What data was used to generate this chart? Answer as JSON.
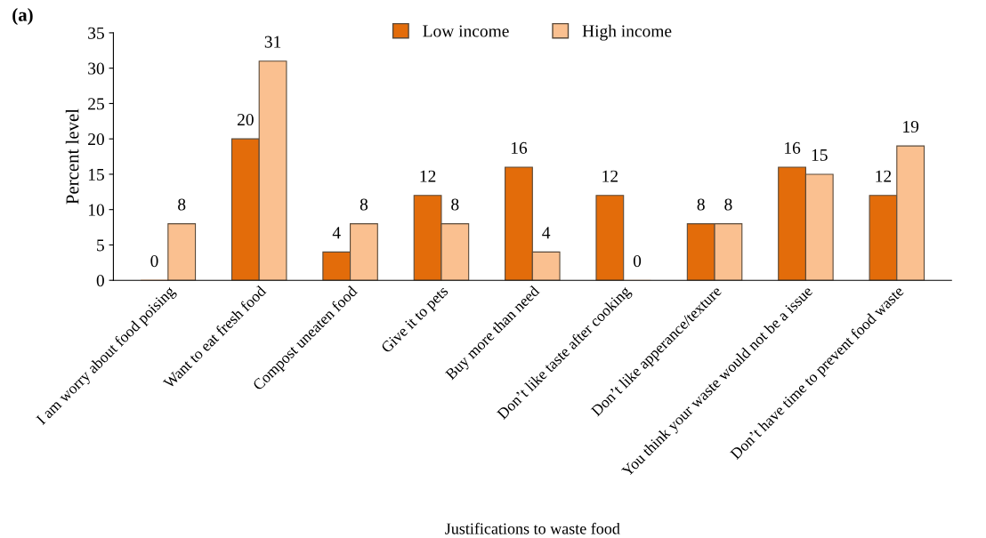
{
  "chart_data": {
    "type": "bar",
    "xlabel": "Justifications to waste food",
    "ylabel": "Percent level",
    "annotations": [
      "(a)"
    ],
    "categories": [
      "I am worry about food poising",
      "Want to eat fresh food",
      "Compost uneaten food",
      "Give it to pets",
      "Buy more than need",
      "Don’t like taste after cooking",
      "Don’t like apperance/texture",
      "You think your waste would not be a issue",
      "Don’t have time to prevent food waste"
    ],
    "series": [
      {
        "name": "Low income",
        "color": "#e36c0a",
        "values": [
          0,
          20,
          4,
          12,
          16,
          12,
          8,
          16,
          12
        ]
      },
      {
        "name": "High income",
        "color": "#fac090",
        "values": [
          8,
          31,
          8,
          8,
          4,
          0,
          8,
          15,
          19
        ]
      }
    ],
    "ylim": [
      0,
      35
    ],
    "yticks": [
      0,
      5,
      10,
      15,
      20,
      25,
      30,
      35
    ],
    "data_labels": true,
    "legend": "top",
    "grid": false
  }
}
